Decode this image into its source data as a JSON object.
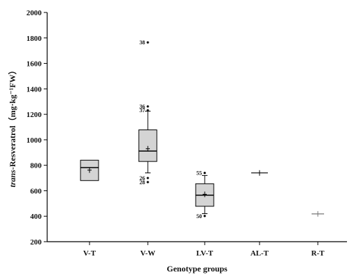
{
  "chart_data": {
    "type": "box",
    "xlabel": "Genotype groups",
    "ylabel_italic": "trans",
    "ylabel_rest": "-Resveratrol（mg·kg⁻¹FW）",
    "ylim": [
      200,
      2000
    ],
    "yticks": [
      200,
      400,
      600,
      800,
      1000,
      1200,
      1400,
      1600,
      1800,
      2000
    ],
    "grid": false,
    "categories": [
      "V-T",
      "V-W",
      "LV-T",
      "AL-T",
      "R-T"
    ],
    "boxes": [
      {
        "category": "V-T",
        "whisker_low": 680,
        "q1": 680,
        "median": 782,
        "q3": 840,
        "whisker_high": 840,
        "mean": 762,
        "outliers": []
      },
      {
        "category": "V-W",
        "whisker_low": 740,
        "q1": 830,
        "median": 912,
        "q3": 1078,
        "whisker_high": 1225,
        "mean": 930,
        "outliers": [
          {
            "label": "38",
            "value": 1765
          },
          {
            "label": "36",
            "value": 1262
          },
          {
            "label": "37",
            "value": 1232
          },
          {
            "label": "26",
            "value": 700
          },
          {
            "label": "28",
            "value": 668
          }
        ]
      },
      {
        "category": "LV-T",
        "whisker_low": 420,
        "q1": 478,
        "median": 565,
        "q3": 655,
        "whisker_high": 720,
        "mean": 572,
        "outliers": [
          {
            "label": "55",
            "value": 740
          },
          {
            "label": "50",
            "value": 402
          }
        ]
      },
      {
        "category": "AL-T",
        "whisker_low": 740,
        "q1": 740,
        "median": 740,
        "q3": 740,
        "whisker_high": 740,
        "mean": 740,
        "outliers": []
      },
      {
        "category": "R-T",
        "whisker_low": 418,
        "q1": 418,
        "median": 418,
        "q3": 418,
        "whisker_high": 418,
        "mean": 418,
        "outliers": []
      }
    ],
    "colors": {
      "box_fill": "#d4d4d4",
      "stroke": "#000000"
    }
  }
}
